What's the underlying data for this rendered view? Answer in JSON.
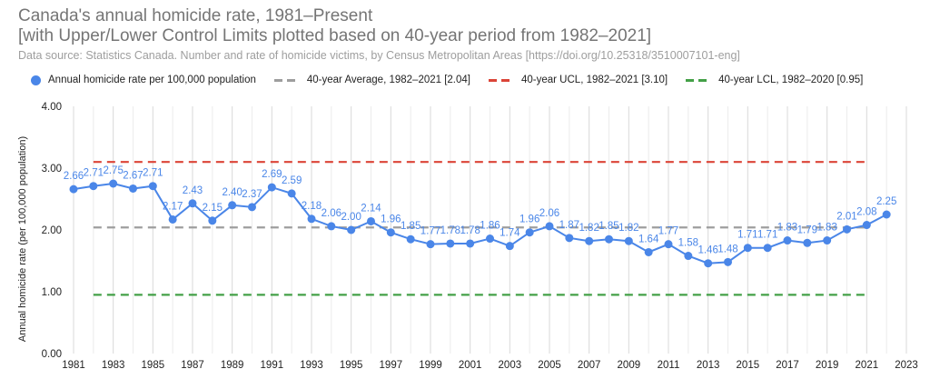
{
  "chart_data": {
    "type": "line",
    "title": "Canada's annual homicide rate, 1981–Present",
    "subtitle": "[with Upper/Lower Control Limits plotted based on 40-year period from 1982–2021]",
    "source": "Data source:  Statistics Canada. Number and rate of homicide victims, by Census Metropolitan Areas [https://doi.org/10.25318/3510007101-eng]",
    "xlabel": "",
    "ylabel": "Annual homicide rate (per 100,000 population)",
    "xlim": [
      1981,
      2023
    ],
    "ylim": [
      0,
      4
    ],
    "grid": true,
    "legend_position": "top",
    "y_ticks": [
      "0.00",
      "1.00",
      "2.00",
      "3.00",
      "4.00"
    ],
    "x_ticks": [
      "1981",
      "1983",
      "1985",
      "1987",
      "1989",
      "1991",
      "1993",
      "1995",
      "1997",
      "1999",
      "2001",
      "2003",
      "2005",
      "2007",
      "2009",
      "2011",
      "2013",
      "2015",
      "2017",
      "2019",
      "2021",
      "2023"
    ],
    "series": [
      {
        "name": "Annual homicide rate per 100,000 population",
        "color": "#4a86e8",
        "kind": "line-markers",
        "x": [
          1981,
          1982,
          1983,
          1984,
          1985,
          1986,
          1987,
          1988,
          1989,
          1990,
          1991,
          1992,
          1993,
          1994,
          1995,
          1996,
          1997,
          1998,
          1999,
          2000,
          2001,
          2002,
          2003,
          2004,
          2005,
          2006,
          2007,
          2008,
          2009,
          2010,
          2011,
          2012,
          2013,
          2014,
          2015,
          2016,
          2017,
          2018,
          2019,
          2020,
          2021,
          2022
        ],
        "values": [
          2.66,
          2.71,
          2.75,
          2.67,
          2.71,
          2.17,
          2.43,
          2.15,
          2.4,
          2.37,
          2.69,
          2.59,
          2.18,
          2.06,
          2.0,
          2.14,
          1.96,
          1.85,
          1.77,
          1.78,
          1.78,
          1.86,
          1.74,
          1.96,
          2.06,
          1.87,
          1.82,
          1.85,
          1.82,
          1.64,
          1.77,
          1.58,
          1.46,
          1.48,
          1.71,
          1.71,
          1.83,
          1.79,
          1.83,
          2.01,
          2.08,
          2.25
        ]
      },
      {
        "name": "40-year Average, 1982–2021 [2.04]",
        "color": "#9e9e9e",
        "kind": "dashed",
        "x": [
          1982,
          2021
        ],
        "values": [
          2.04,
          2.04
        ]
      },
      {
        "name": "40-year UCL, 1982–2021 [3.10]",
        "color": "#db4437",
        "kind": "dashed",
        "x": [
          1982,
          2021
        ],
        "values": [
          3.1,
          3.1
        ]
      },
      {
        "name": "40-year LCL, 1982–2020 [0.95]",
        "color": "#43a047",
        "kind": "dashed",
        "x": [
          1982,
          2021
        ],
        "values": [
          0.95,
          0.95
        ]
      }
    ]
  }
}
